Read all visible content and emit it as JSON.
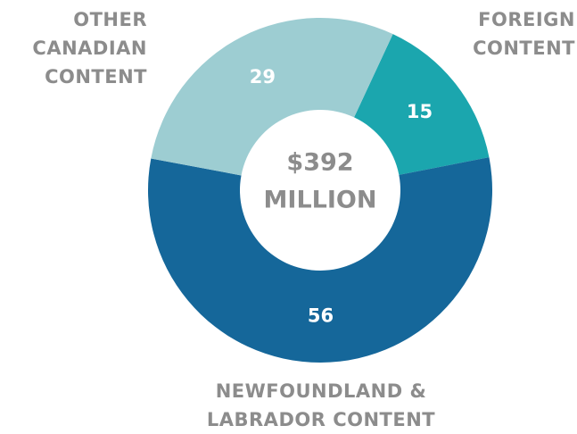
{
  "chart_data": {
    "type": "pie",
    "categories": [
      "FOREIGN CONTENT",
      "NEWFOUNDLAND & LABRADOR CONTENT",
      "OTHER CANADIAN CONTENT"
    ],
    "values": [
      15,
      56,
      29
    ],
    "colors": [
      "#1ba6ae",
      "#15679a",
      "#9dcdd2"
    ],
    "center_text": [
      "$392",
      "MILLION"
    ]
  }
}
